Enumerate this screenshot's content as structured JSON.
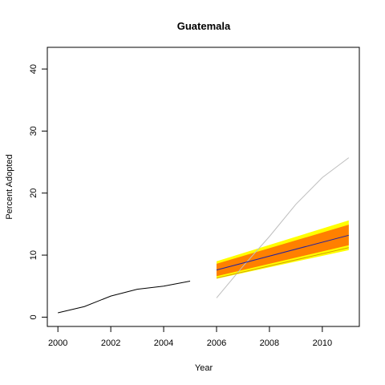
{
  "chart_data": {
    "type": "line",
    "title": "Guatemala",
    "xlabel": "Year",
    "ylabel": "Percent Adopted",
    "xlim": [
      1999.6,
      2011.4
    ],
    "ylim": [
      -1.5,
      43.5
    ],
    "x_ticks": [
      2000,
      2002,
      2004,
      2006,
      2008,
      2010
    ],
    "y_ticks": [
      0,
      10,
      20,
      30,
      40
    ],
    "grid": false,
    "legend": "none",
    "bands": [
      {
        "color": "#ffff00",
        "x": [
          2006,
          2011
        ],
        "lower": [
          6.2,
          10.8
        ],
        "upper": [
          9.0,
          15.6
        ]
      },
      {
        "color": "#ff8000",
        "x": [
          2006,
          2011
        ],
        "lower": [
          6.6,
          11.6
        ],
        "upper": [
          8.6,
          14.9
        ]
      }
    ],
    "series": [
      {
        "color": "#000000",
        "x": [
          2000,
          2001,
          2002,
          2003,
          2004,
          2005
        ],
        "values": [
          0.7,
          1.7,
          3.4,
          4.5,
          5.0,
          5.8
        ]
      },
      {
        "color": "#bebebe",
        "x": [
          2006,
          2007,
          2008,
          2009,
          2010,
          2011
        ],
        "values": [
          3.1,
          8.2,
          13.0,
          18.2,
          22.5,
          25.7
        ]
      },
      {
        "color": "#2020a0",
        "x": [
          2006,
          2011
        ],
        "values": [
          7.6,
          13.2
        ]
      },
      {
        "color": "#d4a000",
        "x": [
          2006,
          2011
        ],
        "values": [
          6.3,
          11.2
        ]
      }
    ]
  }
}
